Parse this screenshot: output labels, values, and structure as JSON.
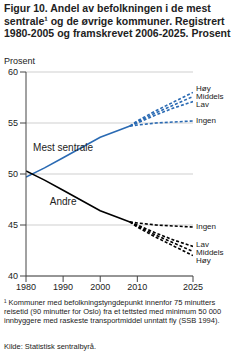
{
  "chart_data": {
    "type": "line",
    "title": "Figur 10. Andel av befolkningen i de mest sentrale¹ og de øvrige kommuner. Registrert 1980-2005 og framskrevet 2006-2025. Prosent",
    "y_label": "Prosent",
    "footnote": "¹ Kommuner med befolkningstyngdepunkt innenfor 75 minutters reisetid (90 minutter for Oslo) fra et tettsted med minimum 50 000 innbyggere med raskeste transportmiddel unntatt fly (SSB 1994).",
    "source": "Kilde: Statistisk sentralbyrå.",
    "x": [
      1980,
      1985,
      1990,
      1995,
      2000,
      2005,
      2008,
      2010,
      2015,
      2020,
      2025
    ],
    "xlim": [
      1980,
      2025
    ],
    "xticks": [
      1980,
      1990,
      2000,
      2010,
      2025
    ],
    "ylim": [
      40,
      60
    ],
    "yticks": [
      40,
      45,
      50,
      55,
      60
    ],
    "grid": true,
    "series": [
      {
        "name": "Mest sentrale",
        "color": "#2a6ab3",
        "line_style": "solid",
        "values": [
          49.7,
          50.6,
          51.6,
          52.6,
          53.6,
          54.3,
          54.7,
          null,
          null,
          null,
          null
        ]
      },
      {
        "name": "Høy",
        "color": "#2a6ab3",
        "line_style": "dashed",
        "values": [
          null,
          null,
          null,
          null,
          null,
          null,
          54.7,
          55.2,
          56.2,
          57.1,
          58.0
        ]
      },
      {
        "name": "Middels",
        "color": "#2a6ab3",
        "line_style": "dashed",
        "values": [
          null,
          null,
          null,
          null,
          null,
          null,
          54.7,
          55.1,
          56.0,
          56.8,
          57.6
        ]
      },
      {
        "name": "Lav",
        "color": "#2a6ab3",
        "line_style": "dashed",
        "values": [
          null,
          null,
          null,
          null,
          null,
          null,
          54.7,
          55.0,
          55.8,
          56.5,
          57.1
        ]
      },
      {
        "name": "Ingen",
        "color": "#2a6ab3",
        "line_style": "dashed",
        "values": [
          null,
          null,
          null,
          null,
          null,
          null,
          54.7,
          54.8,
          55.0,
          55.1,
          55.2
        ]
      },
      {
        "name": "Andre",
        "color": "#000000",
        "line_style": "solid",
        "values": [
          50.3,
          49.4,
          48.4,
          47.4,
          46.4,
          45.7,
          45.3,
          null,
          null,
          null,
          null
        ]
      },
      {
        "name": "Høy",
        "color": "#000000",
        "line_style": "dashed",
        "values": [
          null,
          null,
          null,
          null,
          null,
          null,
          45.3,
          44.8,
          43.8,
          42.9,
          42.0
        ]
      },
      {
        "name": "Middels",
        "color": "#000000",
        "line_style": "dashed",
        "values": [
          null,
          null,
          null,
          null,
          null,
          null,
          45.3,
          44.9,
          44.0,
          43.2,
          42.4
        ]
      },
      {
        "name": "Lav",
        "color": "#000000",
        "line_style": "dashed",
        "values": [
          null,
          null,
          null,
          null,
          null,
          null,
          45.3,
          45.0,
          44.2,
          43.5,
          42.9
        ]
      },
      {
        "name": "Ingen",
        "color": "#000000",
        "line_style": "dashed",
        "values": [
          null,
          null,
          null,
          null,
          null,
          null,
          45.3,
          45.2,
          45.0,
          44.9,
          44.8
        ]
      }
    ]
  }
}
